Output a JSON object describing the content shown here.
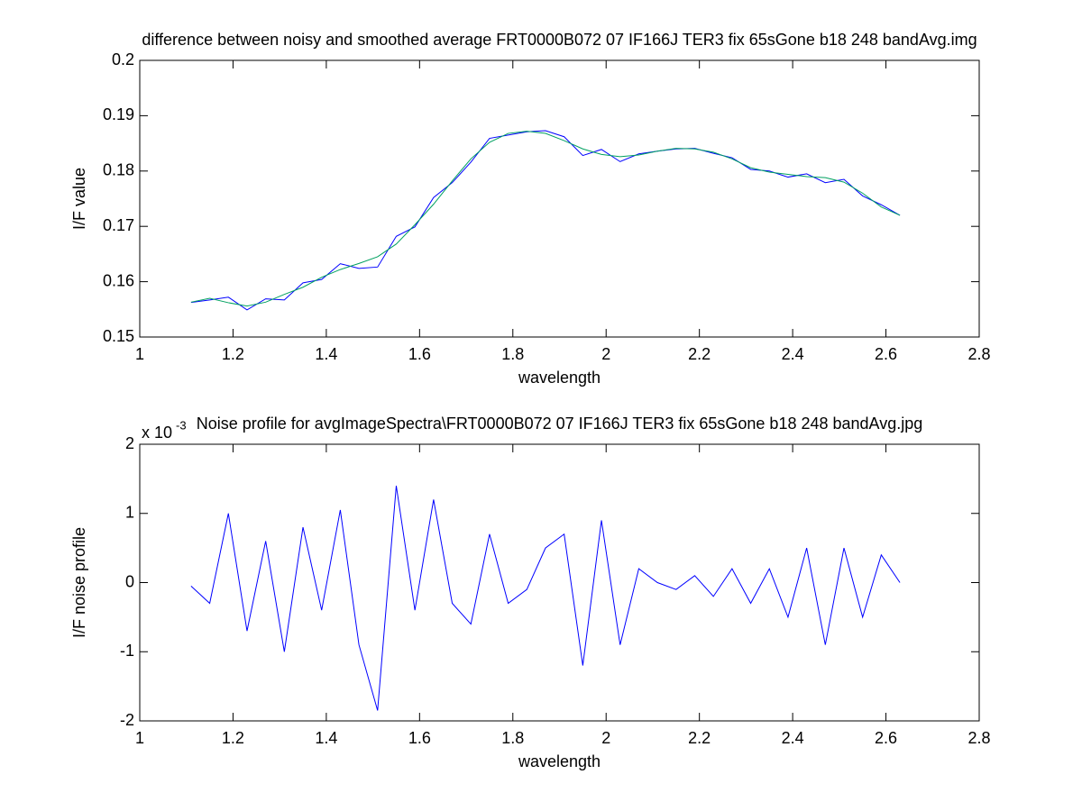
{
  "chart_data": [
    {
      "type": "line",
      "title": "difference between noisy and smoothed average FRT0000B072 07 IF166J TER3 fix 65sGone b18 248 bandAvg.img",
      "x_label": "wavelength",
      "y_label": "I/F value",
      "x": [
        1.11,
        1.15,
        1.19,
        1.23,
        1.27,
        1.31,
        1.35,
        1.39,
        1.43,
        1.47,
        1.51,
        1.55,
        1.59,
        1.63,
        1.67,
        1.71,
        1.75,
        1.79,
        1.83,
        1.87,
        1.91,
        1.95,
        1.99,
        2.03,
        2.07,
        2.11,
        2.15,
        2.19,
        2.23,
        2.27,
        2.31,
        2.35,
        2.39,
        2.43,
        2.47,
        2.51,
        2.55,
        2.59,
        2.63
      ],
      "series": [
        {
          "color": "#0000ff",
          "values": [
            0.15625,
            0.1567,
            0.1572,
            0.1549,
            0.1569,
            0.1567,
            0.1598,
            0.1604,
            0.16325,
            0.1624,
            0.16265,
            0.1682,
            0.1699,
            0.1752,
            0.1779,
            0.1816,
            0.1859,
            0.1865,
            0.1871,
            0.1873,
            0.1862,
            0.1828,
            0.1839,
            0.1817,
            0.1831,
            0.1836,
            0.184,
            0.1841,
            0.1832,
            0.1824,
            0.1803,
            0.18,
            0.1789,
            0.1795,
            0.1779,
            0.1785,
            0.1755,
            0.1739,
            0.172
          ]
        },
        {
          "color": "#00a060",
          "values": [
            0.1563,
            0.157,
            0.1562,
            0.1556,
            0.1563,
            0.1577,
            0.159,
            0.1608,
            0.1622,
            0.1633,
            0.1645,
            0.1668,
            0.1703,
            0.174,
            0.1782,
            0.1822,
            0.1852,
            0.1868,
            0.1872,
            0.1868,
            0.1855,
            0.184,
            0.183,
            0.1826,
            0.1829,
            0.1836,
            0.1841,
            0.184,
            0.1834,
            0.1822,
            0.1806,
            0.1798,
            0.1794,
            0.179,
            0.1788,
            0.178,
            0.176,
            0.1735,
            0.172
          ]
        }
      ],
      "xlim": [
        1,
        2.8
      ],
      "xticks": [
        1,
        1.2,
        1.4,
        1.6,
        1.8,
        2,
        2.2,
        2.4,
        2.6,
        2.8
      ],
      "ylim": [
        0.15,
        0.2
      ],
      "yticks": [
        0.15,
        0.16,
        0.17,
        0.18,
        0.19,
        0.2
      ]
    },
    {
      "type": "line",
      "title": "Noise profile for avgImageSpectra\\FRT0000B072 07 IF166J TER3 fix 65sGone b18 248 bandAvg.jpg",
      "x_label": "wavelength",
      "y_label": "I/F noise profile",
      "y_multiplier": {
        "base": "x 10",
        "exponent": "-3"
      },
      "x": [
        1.11,
        1.15,
        1.19,
        1.23,
        1.27,
        1.31,
        1.35,
        1.39,
        1.43,
        1.47,
        1.51,
        1.55,
        1.59,
        1.63,
        1.67,
        1.71,
        1.75,
        1.79,
        1.83,
        1.87,
        1.91,
        1.95,
        1.99,
        2.03,
        2.07,
        2.11,
        2.15,
        2.19,
        2.23,
        2.27,
        2.31,
        2.35,
        2.39,
        2.43,
        2.47,
        2.51,
        2.55,
        2.59,
        2.63
      ],
      "series": [
        {
          "color": "#0000ff",
          "values": [
            -0.05,
            -0.3,
            1.0,
            -0.7,
            0.6,
            -1.0,
            0.8,
            -0.4,
            1.05,
            -0.9,
            -1.85,
            1.4,
            -0.4,
            1.2,
            -0.3,
            -0.6,
            0.7,
            -0.3,
            -0.1,
            0.5,
            0.7,
            -1.2,
            0.9,
            -0.9,
            0.2,
            0.0,
            -0.1,
            0.1,
            -0.2,
            0.2,
            -0.3,
            0.2,
            -0.5,
            0.5,
            -0.9,
            0.5,
            -0.5,
            0.4,
            0.0
          ]
        }
      ],
      "xlim": [
        1,
        2.8
      ],
      "xticks": [
        1,
        1.2,
        1.4,
        1.6,
        1.8,
        2,
        2.2,
        2.4,
        2.6,
        2.8
      ],
      "ylim": [
        -2,
        2
      ],
      "yticks": [
        -2,
        -1,
        0,
        1,
        2
      ]
    }
  ]
}
